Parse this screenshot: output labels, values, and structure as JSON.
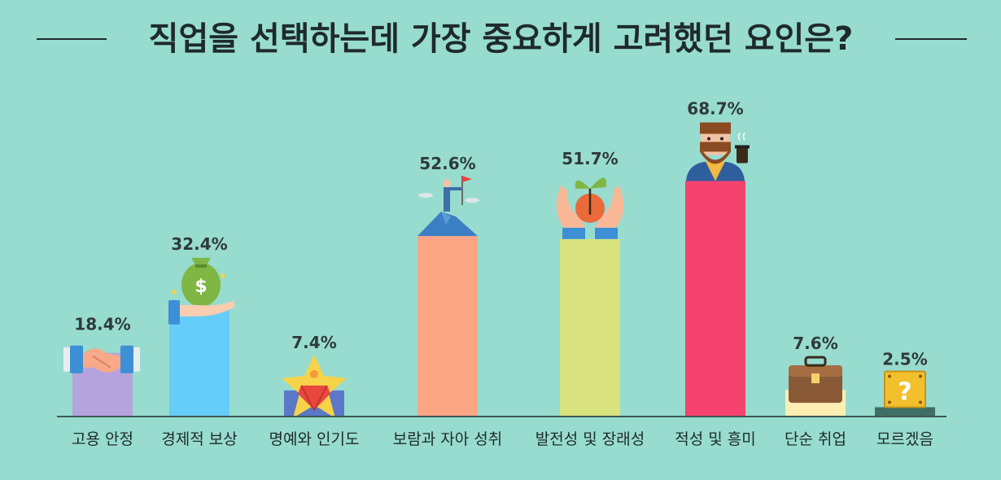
{
  "title": "직업을 선택하는데 가장 중요하게 고려했던 요인은?",
  "chart_data": {
    "type": "bar",
    "title": "직업을 선택하는데 가장 중요하게 고려했던 요인은?",
    "xlabel": "",
    "ylabel": "",
    "categories": [
      "고용 안정",
      "경제적 보상",
      "명예와 인기도",
      "보람과 자아 성취",
      "발전성 및 장래성",
      "적성 및 흥미",
      "단순 취업",
      "모르겠음"
    ],
    "values": [
      18.4,
      32.4,
      7.4,
      52.6,
      51.7,
      68.7,
      7.6,
      2.5
    ],
    "value_labels": [
      "18.4%",
      "32.4%",
      "7.4%",
      "52.6%",
      "51.7%",
      "68.7%",
      "7.6%",
      "2.5%"
    ],
    "bar_colors": [
      "#b5a3dd",
      "#66cdfa",
      "#5b78c9",
      "#fca686",
      "#d9e37f",
      "#f5426f",
      "#fdefb4",
      "#3f6e64"
    ],
    "icons": [
      "handshake-icon",
      "money-bag-hand-icon",
      "star-gem-icon",
      "mountain-flag-person-icon",
      "hands-sprout-icon",
      "bearded-man-coffee-icon",
      "briefcase-icon",
      "question-block-icon"
    ],
    "ylim": [
      0,
      100
    ],
    "grid": false,
    "legend": "none"
  }
}
